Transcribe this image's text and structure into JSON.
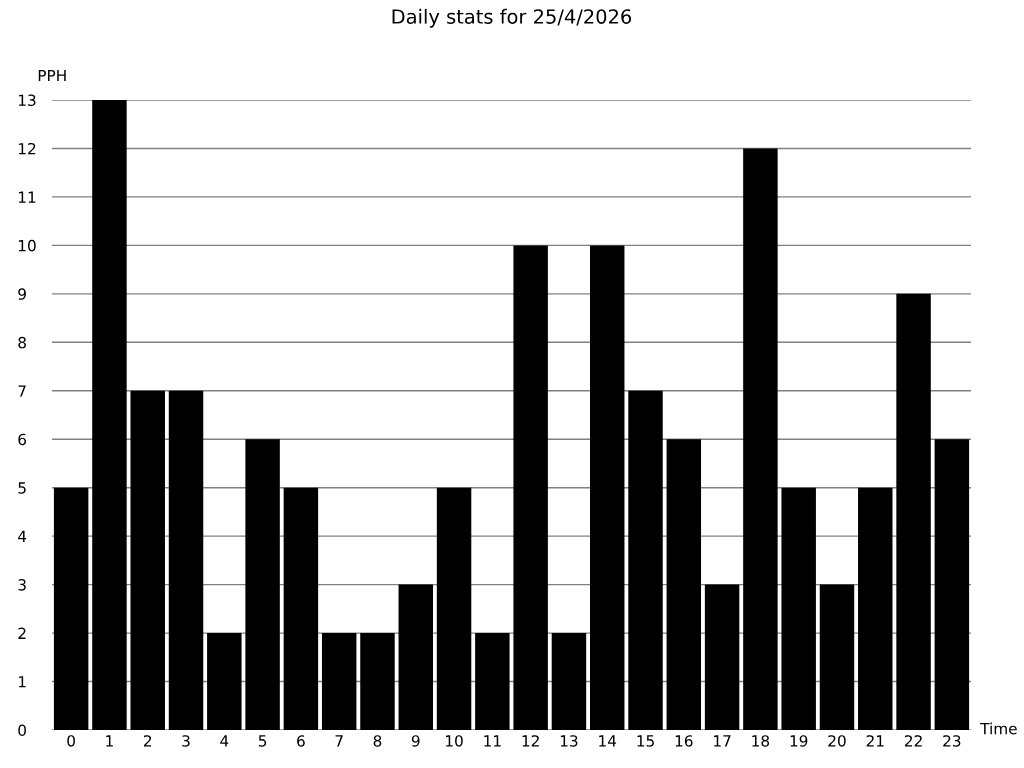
{
  "chart_data": {
    "type": "bar",
    "title": "Daily stats for 25/4/2026",
    "xlabel": "Time",
    "ylabel": "PPH",
    "categories": [
      "0",
      "1",
      "2",
      "3",
      "4",
      "5",
      "6",
      "7",
      "8",
      "9",
      "10",
      "11",
      "12",
      "13",
      "14",
      "15",
      "16",
      "17",
      "18",
      "19",
      "20",
      "21",
      "22",
      "23"
    ],
    "values": [
      5,
      13,
      7,
      7,
      2,
      6,
      5,
      2,
      2,
      3,
      5,
      2,
      10,
      2,
      10,
      7,
      6,
      3,
      12,
      5,
      3,
      5,
      9,
      6
    ],
    "color": "#000000",
    "ylim": [
      0,
      13
    ],
    "yticks": [
      0,
      1,
      2,
      3,
      4,
      5,
      6,
      7,
      8,
      9,
      10,
      11,
      12,
      13
    ],
    "grid": "y",
    "legend": false
  }
}
